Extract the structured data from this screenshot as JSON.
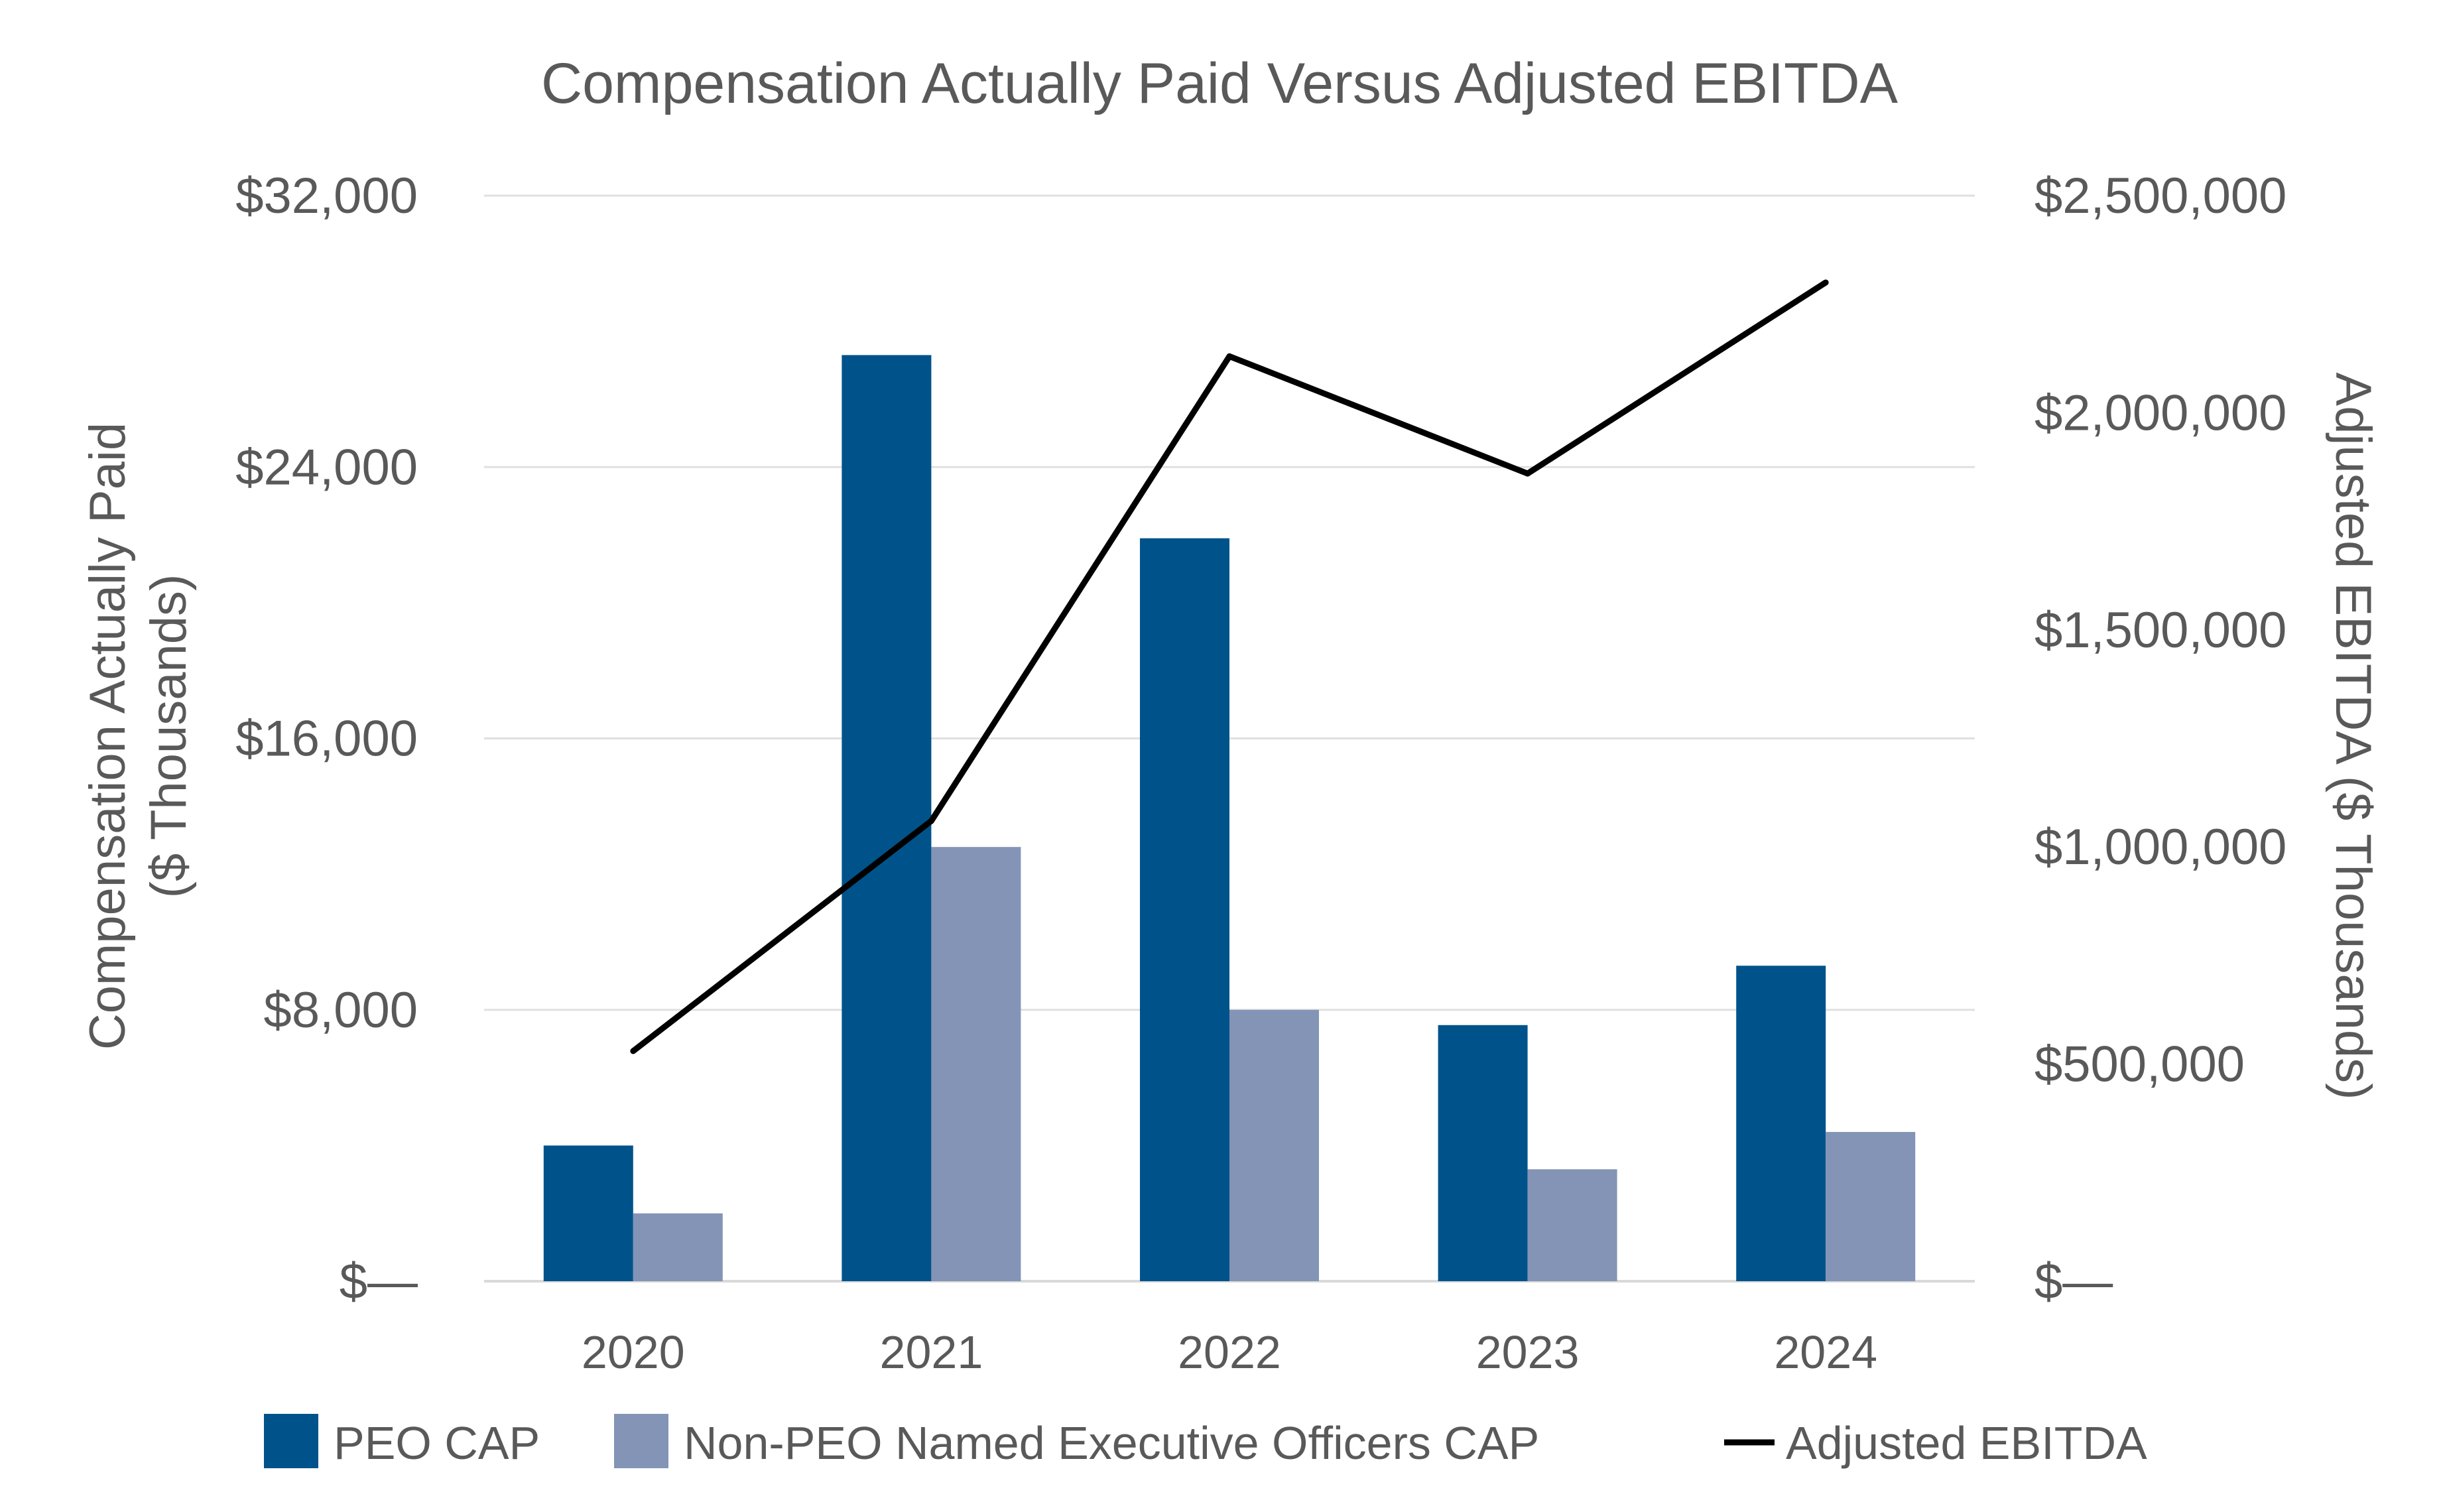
{
  "chart_data": {
    "type": "bar",
    "title": "Compensation Actually Paid Versus Adjusted EBITDA",
    "categories": [
      "2020",
      "2021",
      "2022",
      "2023",
      "2024"
    ],
    "series": [
      {
        "name": "PEO CAP",
        "axis": "left",
        "kind": "bar",
        "color": "#00538A",
        "values": [
          4000,
          27300,
          21900,
          7550,
          9300
        ]
      },
      {
        "name": "Non-PEO Named Executive Officers CAP",
        "axis": "left",
        "kind": "bar",
        "color": "#8394B6",
        "values": [
          2000,
          12800,
          8000,
          3300,
          4400
        ]
      },
      {
        "name": "Adjusted EBITDA",
        "axis": "right",
        "kind": "line",
        "color": "#000000",
        "values": [
          530000,
          1060000,
          2130000,
          1860000,
          2300000
        ]
      }
    ],
    "y_left": {
      "label_line1": "Compensation Actually Paid",
      "label_line2": "($ Thousands)",
      "range": [
        0,
        32000
      ],
      "ticks": [
        0,
        8000,
        16000,
        24000,
        32000
      ],
      "tick_labels": [
        "$—",
        "$8,000",
        "$16,000",
        "$24,000",
        "$32,000"
      ]
    },
    "y_right": {
      "label": "Adjusted EBITDA ($ Thousands)",
      "range": [
        0,
        2500000
      ],
      "ticks": [
        0,
        500000,
        1000000,
        1500000,
        2000000,
        2500000
      ],
      "tick_labels": [
        "$—",
        "$500,000",
        "$1,000,000",
        "$1,500,000",
        "$2,000,000",
        "$2,500,000"
      ]
    },
    "grid": true,
    "legend_position": "bottom"
  }
}
